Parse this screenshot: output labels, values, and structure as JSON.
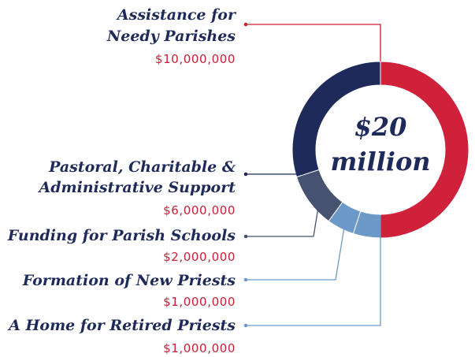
{
  "chart_data": {
    "type": "pie",
    "donut": true,
    "center_label": [
      "$20",
      "million"
    ],
    "series": [
      {
        "name": "Assistance for Needy Parishes",
        "label_lines": [
          "Assistance for",
          "Needy Parishes"
        ],
        "value": 10000000,
        "amount_label": "$10,000,000",
        "color": "#d0213a"
      },
      {
        "name": "A Home for Retired Priests",
        "label_lines": [
          "A Home for Retired Priests"
        ],
        "value": 1000000,
        "amount_label": "$1,000,000",
        "color": "#6b99c8"
      },
      {
        "name": "Formation of New Priests",
        "label_lines": [
          "Formation of New Priests"
        ],
        "value": 1000000,
        "amount_label": "$1,000,000",
        "color": "#6b99c8"
      },
      {
        "name": "Funding for Parish Schools",
        "label_lines": [
          "Funding for Parish Schools"
        ],
        "value": 2000000,
        "amount_label": "$2,000,000",
        "color": "#465270"
      },
      {
        "name": "Pastoral, Charitable & Administrative Support",
        "label_lines": [
          "Pastoral, Charitable &",
          "Administrative Support"
        ],
        "value": 6000000,
        "amount_label": "$6,000,000",
        "color": "#1e2a5a"
      }
    ]
  },
  "colors": {
    "title_text": "#1e2a5a",
    "amount_text": "#c82036",
    "leader_red": "#c82036",
    "leader_navy": "#1e2a5a",
    "leader_slate": "#465270",
    "leader_blue": "#6b99c8"
  }
}
